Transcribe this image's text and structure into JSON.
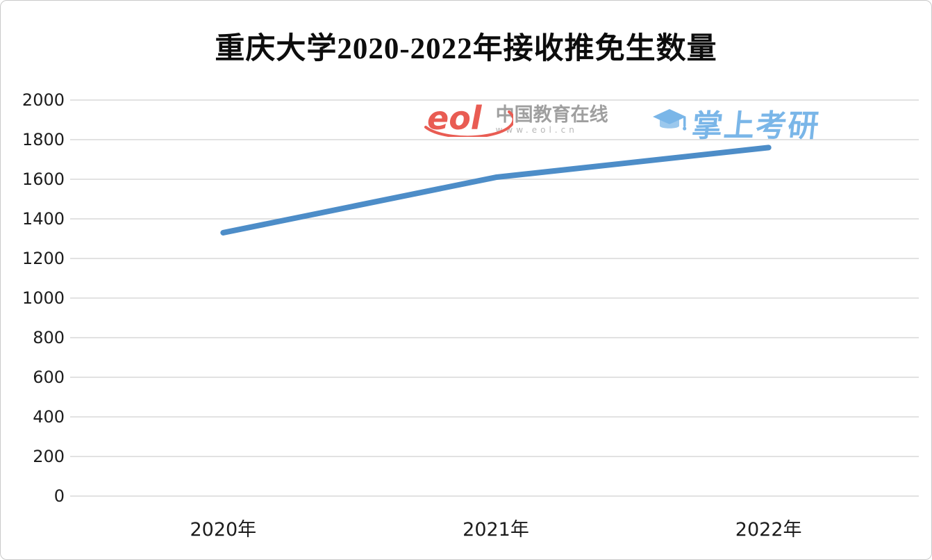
{
  "chart_data": {
    "type": "line",
    "title": "重庆大学2020-2022年接收推免生数量",
    "categories": [
      "2020年",
      "2021年",
      "2022年"
    ],
    "values": [
      1330,
      1610,
      1760
    ],
    "ylim": [
      0,
      2000
    ],
    "ytick_step": 200,
    "yticks": [
      0,
      200,
      400,
      600,
      800,
      1000,
      1200,
      1400,
      1600,
      1800,
      2000
    ],
    "grid": true,
    "legend": "none",
    "xlabel": "",
    "ylabel": ""
  },
  "watermarks": {
    "eol": {
      "logo_text": "eol",
      "site_name": "中国教育在线",
      "site_url": "www.eol.cn"
    },
    "zhangshang": {
      "text": "掌上考研"
    }
  },
  "colors": {
    "line": "#4d8dc8",
    "grid": "#d9d9d9",
    "axis_text": "#1c1c1c",
    "eol_red": "#e8544a",
    "eol_gray": "#9a9a9a",
    "zhangshang_blue": "#73b3e7"
  }
}
